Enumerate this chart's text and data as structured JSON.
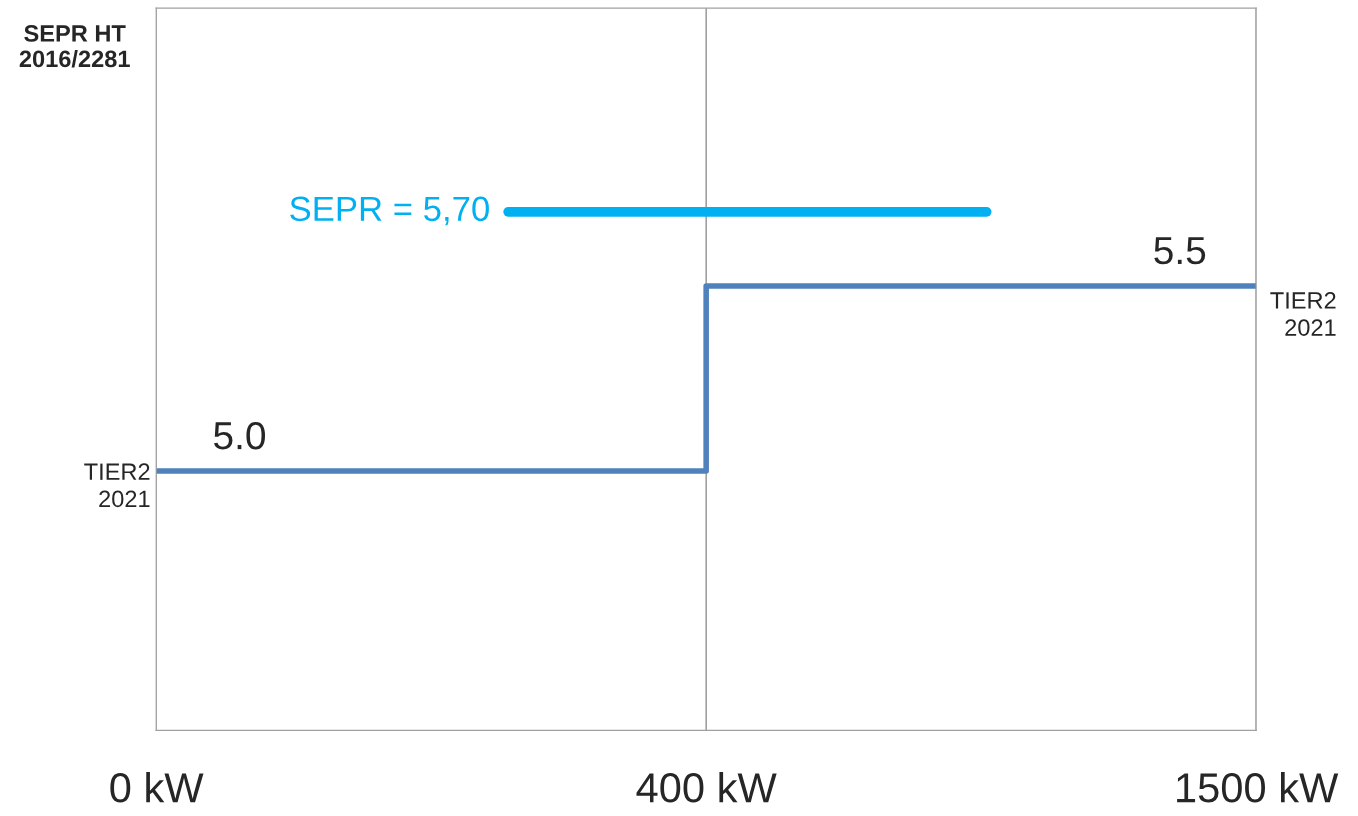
{
  "chart_data": {
    "type": "step",
    "ylabel": "SEPR HT\n2016/2281",
    "categories": [
      "0 kW",
      "400 kW",
      "1500 kW"
    ],
    "series": [
      {
        "color": "#4f81bd",
        "values": [
          5.0,
          5.5,
          5.5
        ],
        "value_labels": [
          "5.0",
          null,
          "5.5"
        ]
      }
    ],
    "ylim": [
      4.3,
      6.25
    ],
    "annotations": [
      {
        "text": "TIER2\n2021",
        "x": "0 kW",
        "y": 5.0
      },
      {
        "text": "TIER2\n2021",
        "x": "1500 kW",
        "y": 5.5
      }
    ],
    "ref_lines": [
      {
        "axis": "y",
        "value": 5.7,
        "label": "SEPR = 5,70",
        "color": "#00b0f0"
      }
    ],
    "grid": "x",
    "legend": false
  }
}
